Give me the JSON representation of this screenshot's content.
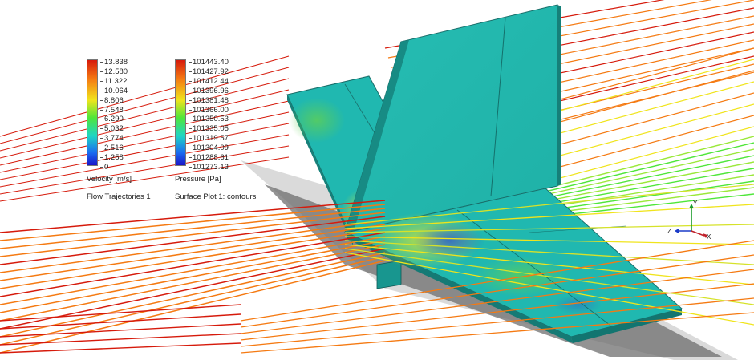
{
  "velocity_legend": {
    "ticks": [
      "13.838",
      "12.580",
      "11.322",
      "10.064",
      "8.806",
      "7.548",
      "6.290",
      "5.032",
      "3.774",
      "2.516",
      "1.258",
      "0"
    ],
    "title": "Velocity [m/s]",
    "subtitle": "Flow Trajectories 1"
  },
  "pressure_legend": {
    "ticks": [
      "101443.40",
      "101427.92",
      "101412.44",
      "101396.96",
      "101381.48",
      "101366.00",
      "101350.53",
      "101335.05",
      "101319.57",
      "101304.09",
      "101288.61",
      "101273.13"
    ],
    "title": "Pressure [Pa]",
    "subtitle": "Surface Plot 1: contours"
  },
  "colormap": {
    "high": "#d61a0b",
    "mid_high": "#f57a12",
    "mid": "#f0e41c",
    "mid_low": "#4fe63a",
    "low_mid": "#1ed6c4",
    "low": "#1a14c8",
    "model_surface": "#20b8b0"
  },
  "triad": {
    "x_label": "X",
    "y_label": "Y",
    "z_label": "Z"
  }
}
